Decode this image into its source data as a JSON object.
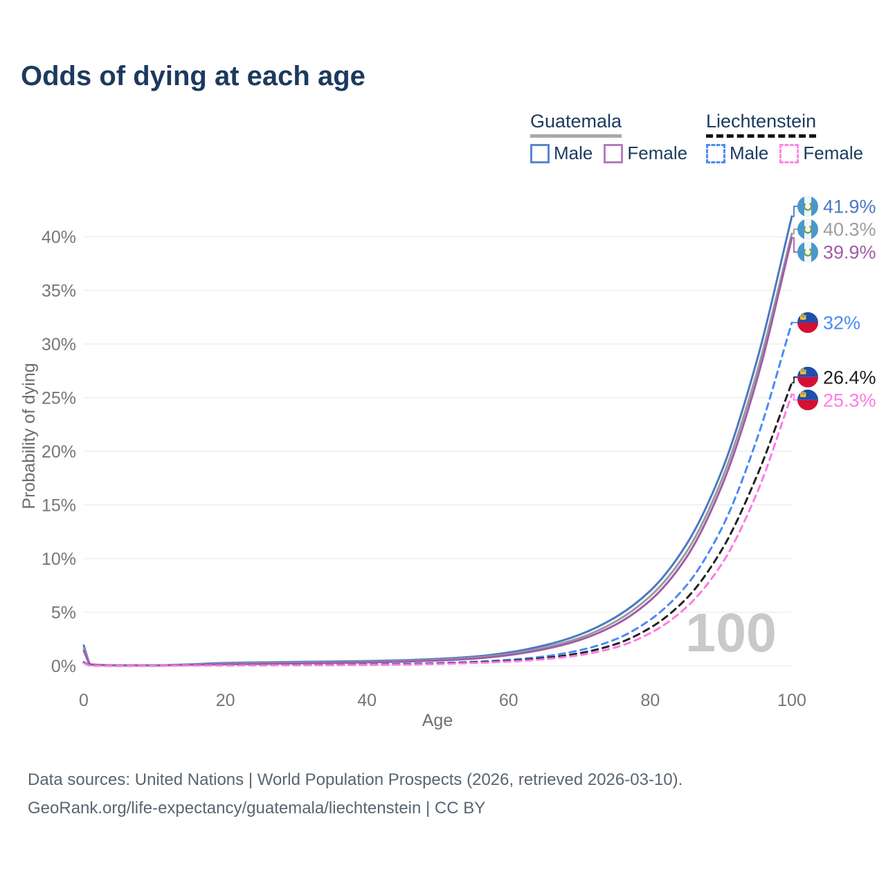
{
  "title": "Odds of dying at each age",
  "legend": {
    "groups": [
      {
        "id": "guatemala",
        "country": "Guatemala",
        "underline_style": "solid",
        "items": [
          {
            "id": "male",
            "label": "Male",
            "swatch_color": "#5b86c8",
            "swatch_style": "solid"
          },
          {
            "id": "female",
            "label": "Female",
            "swatch_color": "#b57cc0",
            "swatch_style": "solid"
          }
        ]
      },
      {
        "id": "liechtenstein",
        "country": "Liechtenstein",
        "underline_style": "dashed",
        "items": [
          {
            "id": "male",
            "label": "Male",
            "swatch_color": "#4b8bf5",
            "swatch_style": "dashed"
          },
          {
            "id": "female",
            "label": "Female",
            "swatch_color": "#ff85e8",
            "swatch_style": "dashed"
          }
        ]
      }
    ]
  },
  "chart_data": {
    "type": "line",
    "title": "Odds of dying at each age",
    "xlabel": "Age",
    "ylabel": "Probability of dying",
    "xlim": [
      0,
      100
    ],
    "ylim": [
      0,
      43
    ],
    "x_ticks": [
      0,
      20,
      40,
      60,
      80,
      100
    ],
    "x_tick_labels": [
      "0",
      "20",
      "40",
      "60",
      "80",
      "100"
    ],
    "y_ticks": [
      0,
      5,
      10,
      15,
      20,
      25,
      30,
      35,
      40
    ],
    "y_tick_labels": [
      "0%",
      "5%",
      "10%",
      "15%",
      "20%",
      "25%",
      "30%",
      "35%",
      "40%"
    ],
    "grid": "horizontal",
    "legend_position": "top-right",
    "watermark": "100",
    "ages": [
      0,
      1,
      5,
      10,
      15,
      20,
      25,
      30,
      35,
      40,
      45,
      50,
      55,
      60,
      65,
      70,
      75,
      80,
      85,
      90,
      95,
      100
    ],
    "series": [
      {
        "name": "Guatemala Male",
        "country": "guatemala",
        "sex": "male",
        "color": "#4a78c2",
        "dashed": false,
        "end_label": "41.9%",
        "label_color": "#4a78c2",
        "flag": "guatemala",
        "values": [
          1.9,
          0.15,
          0.06,
          0.06,
          0.15,
          0.27,
          0.33,
          0.37,
          0.4,
          0.45,
          0.52,
          0.65,
          0.85,
          1.25,
          1.9,
          2.9,
          4.5,
          7.0,
          11.2,
          18.0,
          28.3,
          41.9
        ]
      },
      {
        "name": "Guatemala Both sexes",
        "country": "guatemala",
        "sex": "both",
        "color": "#9b9b9b",
        "dashed": false,
        "end_label": "40.3%",
        "label_color": "#9e9e9e",
        "flag": "guatemala",
        "values": [
          1.65,
          0.13,
          0.05,
          0.05,
          0.12,
          0.21,
          0.26,
          0.3,
          0.33,
          0.38,
          0.45,
          0.57,
          0.75,
          1.1,
          1.7,
          2.6,
          4.1,
          6.5,
          10.5,
          17.2,
          27.2,
          40.3
        ]
      },
      {
        "name": "Guatemala Female",
        "country": "guatemala",
        "sex": "female",
        "color": "#a05ca8",
        "dashed": false,
        "end_label": "39.9%",
        "label_color": "#a05ca8",
        "flag": "guatemala",
        "values": [
          1.4,
          0.11,
          0.04,
          0.04,
          0.09,
          0.15,
          0.19,
          0.23,
          0.27,
          0.32,
          0.39,
          0.5,
          0.67,
          1.0,
          1.55,
          2.4,
          3.8,
          6.1,
          10.0,
          16.6,
          26.5,
          39.9
        ]
      },
      {
        "name": "Liechtenstein Male",
        "country": "liechtenstein",
        "sex": "male",
        "color": "#4b8bf5",
        "dashed": true,
        "end_label": "32%",
        "label_color": "#4b8bf5",
        "flag": "liechtenstein",
        "values": [
          0.35,
          0.03,
          0.02,
          0.02,
          0.05,
          0.08,
          0.09,
          0.1,
          0.11,
          0.13,
          0.18,
          0.26,
          0.38,
          0.56,
          0.88,
          1.45,
          2.45,
          4.3,
          7.4,
          12.7,
          21.0,
          32.0
        ]
      },
      {
        "name": "Liechtenstein Both sexes",
        "country": "liechtenstein",
        "sex": "both",
        "color": "#222222",
        "dashed": true,
        "end_label": "26.4%",
        "label_color": "#1f1f1f",
        "flag": "liechtenstein",
        "values": [
          0.3,
          0.03,
          0.02,
          0.02,
          0.04,
          0.06,
          0.07,
          0.08,
          0.09,
          0.11,
          0.15,
          0.22,
          0.32,
          0.47,
          0.73,
          1.18,
          2.0,
          3.55,
          6.2,
          10.7,
          17.6,
          26.4
        ]
      },
      {
        "name": "Liechtenstein Female",
        "country": "liechtenstein",
        "sex": "female",
        "color": "#ff7ae5",
        "dashed": true,
        "end_label": "25.3%",
        "label_color": "#ff7ae5",
        "flag": "liechtenstein",
        "values": [
          0.26,
          0.02,
          0.01,
          0.02,
          0.03,
          0.04,
          0.05,
          0.06,
          0.07,
          0.09,
          0.12,
          0.18,
          0.27,
          0.4,
          0.62,
          1.0,
          1.7,
          3.05,
          5.4,
          9.4,
          16.0,
          25.3
        ]
      }
    ]
  },
  "footer": {
    "line1": "Data sources: United Nations | World Population Prospects (2026, retrieved 2026-03-10).",
    "line2": "GeoRank.org/life-expectancy/guatemala/liechtenstein | CC BY"
  }
}
